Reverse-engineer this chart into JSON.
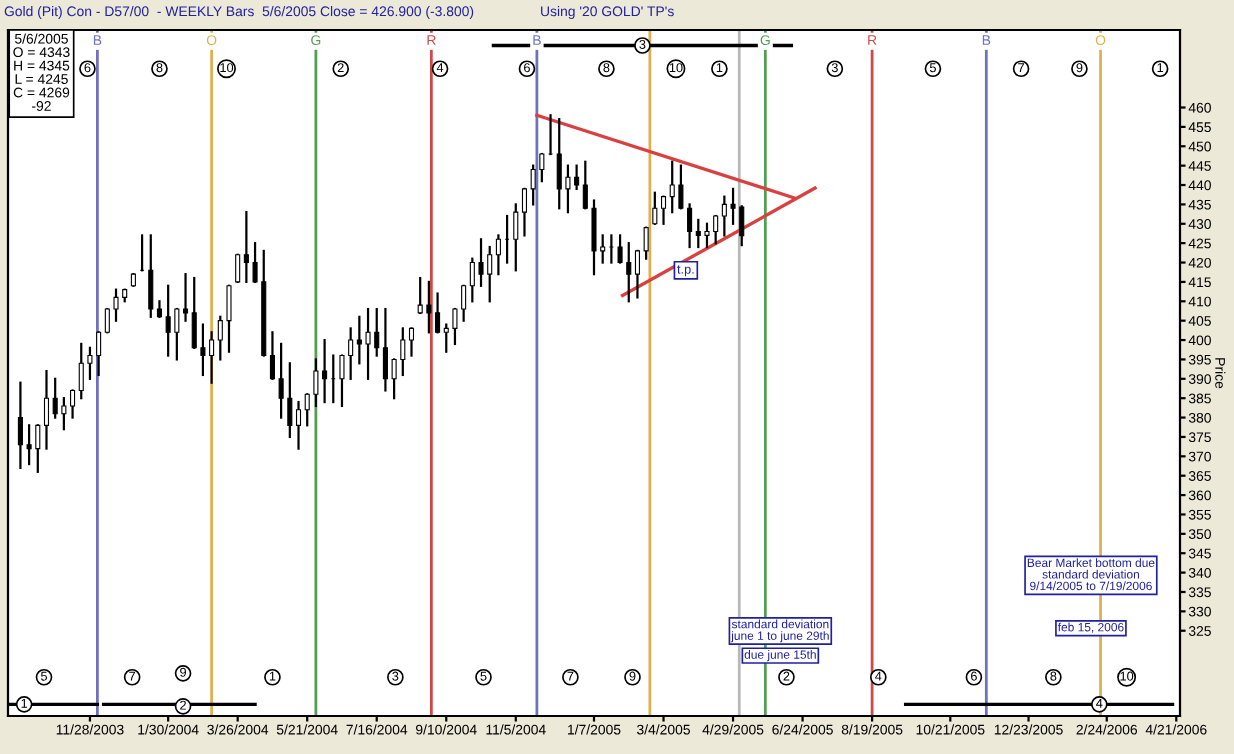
{
  "chart_data": {
    "type": "candlestick",
    "title": "Gold (Pit) Con - D57/00  - WEEKLY Bars  5/6/2005 Close = 426.900 (-3.800)",
    "subtitle": "Using '20 GOLD' TP's",
    "ylabel": "Price",
    "x": [
      "2003-10-03",
      "2003-10-10",
      "2003-10-17",
      "2003-10-24",
      "2003-10-31",
      "2003-11-07",
      "2003-11-14",
      "2003-11-21",
      "2003-11-28",
      "2003-12-05",
      "2003-12-12",
      "2003-12-19",
      "2003-12-26",
      "2004-01-02",
      "2004-01-09",
      "2004-01-16",
      "2004-01-23",
      "2004-01-30",
      "2004-02-06",
      "2004-02-13",
      "2004-02-20",
      "2004-02-27",
      "2004-03-05",
      "2004-03-12",
      "2004-03-19",
      "2004-03-26",
      "2004-04-02",
      "2004-04-09",
      "2004-04-16",
      "2004-04-23",
      "2004-04-30",
      "2004-05-07",
      "2004-05-14",
      "2004-05-21",
      "2004-05-28",
      "2004-06-04",
      "2004-06-11",
      "2004-06-18",
      "2004-06-25",
      "2004-07-02",
      "2004-07-09",
      "2004-07-16",
      "2004-07-23",
      "2004-07-30",
      "2004-08-06",
      "2004-08-13",
      "2004-08-20",
      "2004-08-27",
      "2004-09-03",
      "2004-09-10",
      "2004-09-17",
      "2004-09-24",
      "2004-10-01",
      "2004-10-08",
      "2004-10-15",
      "2004-10-22",
      "2004-10-29",
      "2004-11-05",
      "2004-11-12",
      "2004-11-19",
      "2004-11-26",
      "2004-12-03",
      "2004-12-10",
      "2004-12-17",
      "2004-12-24",
      "2004-12-31",
      "2005-01-07",
      "2005-01-14",
      "2005-01-21",
      "2005-01-28",
      "2005-02-04",
      "2005-02-11",
      "2005-02-18",
      "2005-02-25",
      "2005-03-04",
      "2005-03-11",
      "2005-03-18",
      "2005-03-25",
      "2005-04-01",
      "2005-04-08",
      "2005-04-15",
      "2005-04-22",
      "2005-04-29",
      "2005-05-06"
    ],
    "ohlc": [
      [
        380,
        389,
        367,
        373
      ],
      [
        373,
        378,
        368,
        372
      ],
      [
        372,
        378,
        366,
        378
      ],
      [
        378,
        392,
        372,
        385
      ],
      [
        385,
        390,
        380,
        381
      ],
      [
        381,
        385,
        377,
        383
      ],
      [
        383,
        387,
        380,
        387
      ],
      [
        387,
        399,
        385,
        394
      ],
      [
        394,
        398,
        390,
        396
      ],
      [
        396,
        402,
        391,
        402
      ],
      [
        402,
        408,
        402,
        408
      ],
      [
        408,
        413,
        405,
        411
      ],
      [
        411,
        413,
        410,
        413
      ],
      [
        414,
        417,
        414,
        417
      ],
      [
        418,
        427,
        418,
        418
      ],
      [
        418,
        427,
        406,
        408
      ],
      [
        408,
        410,
        406,
        406
      ],
      [
        406,
        414,
        396,
        402
      ],
      [
        402,
        408,
        395,
        408
      ],
      [
        408,
        417,
        405,
        407
      ],
      [
        407,
        416,
        398,
        398
      ],
      [
        398,
        404,
        391,
        396
      ],
      [
        396,
        402,
        389,
        400
      ],
      [
        400,
        406,
        395,
        405
      ],
      [
        405,
        414,
        397,
        414
      ],
      [
        415,
        422,
        415,
        422
      ],
      [
        422,
        433,
        415,
        420
      ],
      [
        420,
        425,
        415,
        415
      ],
      [
        415,
        423,
        396,
        396
      ],
      [
        396,
        402,
        390,
        390
      ],
      [
        390,
        399,
        380,
        385
      ],
      [
        385,
        394,
        375,
        378
      ],
      [
        378,
        384,
        372,
        382
      ],
      [
        382,
        386,
        378,
        386
      ],
      [
        386,
        395,
        383,
        392
      ],
      [
        392,
        400,
        384,
        390
      ],
      [
        390,
        396,
        384,
        390
      ],
      [
        390,
        396,
        383,
        396
      ],
      [
        396,
        403,
        390,
        400
      ],
      [
        400,
        406,
        394,
        399
      ],
      [
        399,
        408,
        390,
        402
      ],
      [
        402,
        408,
        396,
        398
      ],
      [
        398,
        408,
        387,
        390
      ],
      [
        390,
        395,
        385,
        395
      ],
      [
        395,
        403,
        391,
        400
      ],
      [
        400,
        403,
        396,
        403
      ],
      [
        407,
        416,
        407,
        409
      ],
      [
        409,
        415,
        402,
        407
      ],
      [
        407,
        412,
        402,
        402
      ],
      [
        402,
        404,
        397,
        403
      ],
      [
        403,
        408,
        399,
        408
      ],
      [
        408,
        414,
        405,
        414
      ],
      [
        414,
        421,
        410,
        420
      ],
      [
        420,
        426,
        414,
        417
      ],
      [
        417,
        424,
        410,
        422
      ],
      [
        422,
        427,
        417,
        426
      ],
      [
        426,
        432,
        420,
        426
      ],
      [
        426,
        435,
        418,
        433
      ],
      [
        433,
        439,
        427,
        439
      ],
      [
        439,
        445,
        435,
        444
      ],
      [
        444,
        448,
        441,
        448
      ],
      [
        448,
        458,
        448,
        448
      ],
      [
        448,
        457,
        434,
        439
      ],
      [
        439,
        445,
        433,
        442
      ],
      [
        442,
        445,
        439,
        440
      ],
      [
        440,
        446,
        434,
        434
      ],
      [
        434,
        436,
        417,
        423
      ],
      [
        423,
        427,
        420,
        424
      ],
      [
        424,
        427,
        420,
        424
      ],
      [
        424,
        427,
        420,
        420
      ],
      [
        420,
        425,
        410,
        417
      ],
      [
        417,
        423,
        411,
        423
      ],
      [
        423,
        429,
        421,
        429
      ],
      [
        430,
        438,
        430,
        434
      ],
      [
        434,
        437,
        430,
        437
      ],
      [
        437,
        446,
        433,
        440
      ],
      [
        440,
        445,
        434,
        434
      ],
      [
        434,
        435,
        424,
        428
      ],
      [
        428,
        431,
        424,
        427
      ],
      [
        427,
        430,
        424,
        428
      ],
      [
        428,
        432,
        425,
        432
      ],
      [
        432,
        437,
        427,
        435
      ],
      [
        435,
        439,
        430,
        434
      ],
      [
        434.3,
        434.5,
        424.5,
        426.9
      ]
    ],
    "color": "#000000",
    "series": [
      {
        "type": "line",
        "x": [
          "2004-11-22",
          "2005-06-18"
        ],
        "values": [
          458,
          436.6
        ],
        "color": "#d94040"
      },
      {
        "type": "line",
        "x": [
          "2005-01-30",
          "2005-07-04"
        ],
        "values": [
          411.5,
          439.2
        ],
        "color": "#d94040"
      },
      {
        "type": "line",
        "x": [
          "2003-09-23",
          "2003-12-04"
        ],
        "values": [
          306,
          306
        ],
        "color": "#000000"
      },
      {
        "type": "line",
        "x": [
          "2003-12-09",
          "2004-04-09"
        ],
        "values": [
          306,
          306
        ],
        "color": "#000000"
      },
      {
        "type": "line",
        "x": [
          "2004-10-18",
          "2005-06-15"
        ],
        "values": [
          476,
          476
        ],
        "color": "#000000"
      },
      {
        "type": "line",
        "x": [
          "2005-09-15",
          "2006-04-18"
        ],
        "values": [
          306,
          306
        ],
        "color": "#000000"
      }
    ],
    "xlim": [
      "2003-09-23",
      "2006-04-24"
    ],
    "xticks": [
      {
        "value": "2003-11-28",
        "label": "11/28/2003"
      },
      {
        "value": "2004-01-30",
        "label": "1/30/2004"
      },
      {
        "value": "2004-03-26",
        "label": "3/26/2004"
      },
      {
        "value": "2004-05-21",
        "label": "5/21/2004"
      },
      {
        "value": "2004-07-16",
        "label": "7/16/2004"
      },
      {
        "value": "2004-09-10",
        "label": "9/10/2004"
      },
      {
        "value": "2004-11-05",
        "label": "11/5/2004"
      },
      {
        "value": "2005-01-07",
        "label": "1/7/2005"
      },
      {
        "value": "2005-03-04",
        "label": "3/4/2005"
      },
      {
        "value": "2005-04-29",
        "label": "4/29/2005"
      },
      {
        "value": "2005-06-24",
        "label": "6/24/2005"
      },
      {
        "value": "2005-08-19",
        "label": "8/19/2005"
      },
      {
        "value": "2005-10-21",
        "label": "10/21/2005"
      },
      {
        "value": "2005-12-23",
        "label": "12/23/2005"
      },
      {
        "value": "2006-02-24",
        "label": "2/24/2006"
      },
      {
        "value": "2006-04-21",
        "label": "4/21/2006"
      }
    ],
    "ylim": [
      303,
      480
    ],
    "yticks": [
      325,
      330,
      335,
      340,
      345,
      350,
      355,
      360,
      365,
      370,
      375,
      380,
      385,
      390,
      395,
      400,
      405,
      410,
      415,
      420,
      425,
      430,
      435,
      440,
      445,
      450,
      455,
      460
    ],
    "grid": false,
    "ref_lines": [
      {
        "axis": "x",
        "value": "2003-12-04",
        "label": "B",
        "color": "#7070c0"
      },
      {
        "axis": "x",
        "value": "2004-03-05",
        "label": "O",
        "color": "#e0b050"
      },
      {
        "axis": "x",
        "value": "2004-05-28",
        "label": "G",
        "color": "#50a050"
      },
      {
        "axis": "x",
        "value": "2004-08-29",
        "label": "R",
        "color": "#d04848"
      },
      {
        "axis": "x",
        "value": "2004-11-22",
        "label": "B",
        "color": "#7070c0"
      },
      {
        "axis": "x",
        "value": "2005-02-21",
        "label": null,
        "color": "#e0b050"
      },
      {
        "axis": "x",
        "value": "2005-05-04",
        "label": null,
        "color": "#b8b8b8"
      },
      {
        "axis": "x",
        "value": "2005-05-25",
        "label": "G",
        "color": "#50a050"
      },
      {
        "axis": "x",
        "value": "2005-08-19",
        "label": "R",
        "color": "#d04848"
      },
      {
        "axis": "x",
        "value": "2005-11-19",
        "label": "B",
        "color": "#7070c0"
      },
      {
        "axis": "x",
        "value": "2006-02-19",
        "label": "O",
        "color": "#e0b050"
      }
    ],
    "annotations": [
      "5/6/2005\nO = 4343\nH = 4345\nL = 4245\nC = 4269\n-92",
      {
        "text": "t.p.",
        "x": "2005-03-22",
        "y": 418
      },
      "standard deviation\njune 1 to june 29th",
      "due june 15th",
      "Bear Market bottom due\nstandard deviation\n9/14/2005 to 7/19/2006",
      "feb 15, 2006",
      {
        "text": "6",
        "x": "2003-11-26",
        "y": 470
      },
      {
        "text": "8",
        "x": "2004-01-23",
        "y": 470
      },
      {
        "text": "10",
        "x": "2004-03-17",
        "y": 470
      },
      {
        "text": "2",
        "x": "2004-06-17",
        "y": 470
      },
      {
        "text": "4",
        "x": "2004-09-05",
        "y": 470
      },
      {
        "text": "6",
        "x": "2004-11-14",
        "y": 470
      },
      {
        "text": "8",
        "x": "2005-01-17",
        "y": 470
      },
      {
        "text": "10",
        "x": "2005-03-14",
        "y": 470
      },
      {
        "text": "1",
        "x": "2005-04-18",
        "y": 470
      },
      {
        "text": "3",
        "x": "2005-07-20",
        "y": 470
      },
      {
        "text": "5",
        "x": "2005-10-07",
        "y": 470
      },
      {
        "text": "7",
        "x": "2005-12-17",
        "y": 470
      },
      {
        "text": "9",
        "x": "2006-02-02",
        "y": 470
      },
      {
        "text": "1",
        "x": "2006-04-08",
        "y": 470
      },
      {
        "text": "3",
        "x": "2005-02-15",
        "y": 476
      },
      {
        "text": "5",
        "x": "2003-10-22",
        "y": 313
      },
      {
        "text": "7",
        "x": "2004-01-01",
        "y": 313
      },
      {
        "text": "9",
        "x": "2004-02-11",
        "y": 314
      },
      {
        "text": "1",
        "x": "2004-04-23",
        "y": 313
      },
      {
        "text": "3",
        "x": "2004-07-31",
        "y": 313
      },
      {
        "text": "5",
        "x": "2004-10-10",
        "y": 313
      },
      {
        "text": "7",
        "x": "2004-12-19",
        "y": 313
      },
      {
        "text": "9",
        "x": "2005-02-07",
        "y": 313
      },
      {
        "text": "2",
        "x": "2005-06-11",
        "y": 313
      },
      {
        "text": "4",
        "x": "2005-08-24",
        "y": 313
      },
      {
        "text": "6",
        "x": "2005-11-09",
        "y": 313
      },
      {
        "text": "8",
        "x": "2006-01-12",
        "y": 313
      },
      {
        "text": "10",
        "x": "2006-03-12",
        "y": 313
      },
      {
        "text": "1",
        "x": "2003-10-06",
        "y": 306
      },
      {
        "text": "2",
        "x": "2004-02-11",
        "y": 305.5
      },
      {
        "text": "4",
        "x": "2006-02-18",
        "y": 306
      }
    ]
  }
}
